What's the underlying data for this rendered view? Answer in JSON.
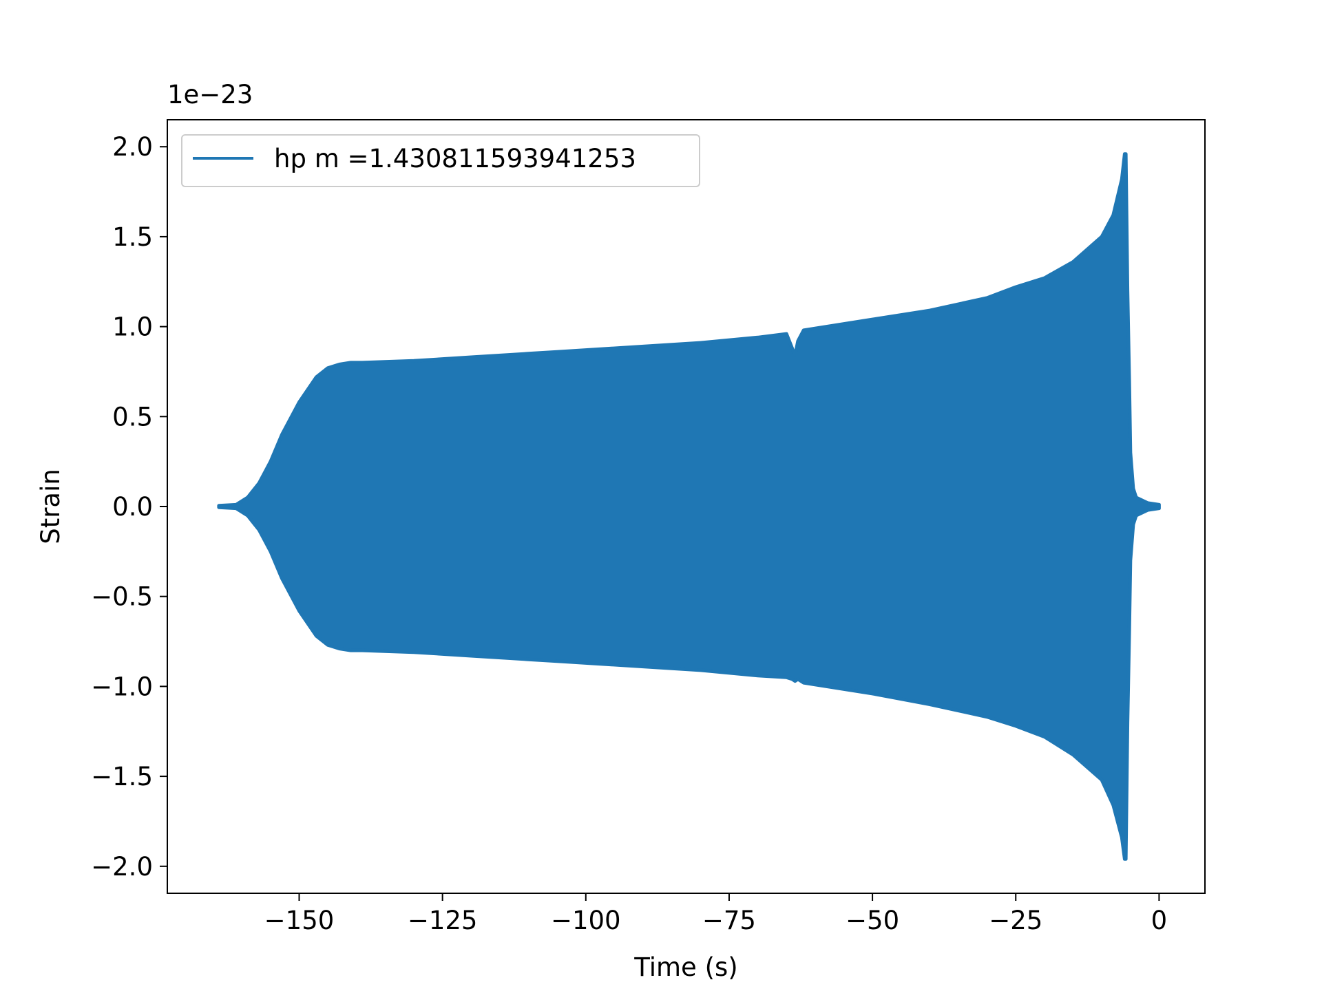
{
  "chart_data": {
    "type": "line",
    "title": "",
    "xlabel": "Time (s)",
    "ylabel": "Strain",
    "y_offset_label": "1e−23",
    "y_scale_factor": 1e-23,
    "xlim": [
      -173,
      8
    ],
    "ylim": [
      -2.15,
      2.15
    ],
    "x_ticks": [
      -150,
      -125,
      -100,
      -75,
      -50,
      -25,
      0
    ],
    "x_tick_labels": [
      "−150",
      "−125",
      "−100",
      "−75",
      "−50",
      "−25",
      "0"
    ],
    "y_ticks": [
      2.0,
      1.5,
      1.0,
      0.5,
      0.0,
      -0.5,
      -1.0,
      -1.5,
      -2.0
    ],
    "y_tick_labels": [
      "2.0",
      "1.5",
      "1.0",
      "0.5",
      "0.0",
      "−0.5",
      "−1.0",
      "−1.5",
      "−2.0"
    ],
    "grid": false,
    "legend_position": "upper-left",
    "series": [
      {
        "name": "hp m =1.430811593941253",
        "color": "#1f77b4",
        "style": "rapidly oscillating waveform, rendered as filled envelope",
        "envelope_upper": {
          "x": [
            -164,
            -161,
            -159,
            -157,
            -155,
            -153,
            -150,
            -147,
            -145,
            -143,
            -141,
            -139,
            -130,
            -120,
            -110,
            -105,
            -100,
            -90,
            -80,
            -70,
            -65,
            -64,
            -63.5,
            -63,
            -62,
            -60,
            -50,
            -40,
            -30,
            -25,
            -20,
            -15,
            -10,
            -8,
            -6.5,
            -6,
            -5.8,
            -5.5,
            -5.2,
            -5,
            -4.5,
            -4,
            -2,
            0
          ],
          "values": [
            0.005,
            0.01,
            0.05,
            0.13,
            0.25,
            0.4,
            0.58,
            0.72,
            0.77,
            0.79,
            0.8,
            0.8,
            0.81,
            0.83,
            0.85,
            0.86,
            0.87,
            0.89,
            0.91,
            0.94,
            0.96,
            0.88,
            0.84,
            0.92,
            0.98,
            0.99,
            1.04,
            1.09,
            1.16,
            1.22,
            1.27,
            1.36,
            1.5,
            1.62,
            1.82,
            1.96,
            1.96,
            1.2,
            0.7,
            0.3,
            0.1,
            0.05,
            0.02,
            0.01
          ]
        },
        "envelope_lower": {
          "x": [
            -164,
            -161,
            -159,
            -157,
            -155,
            -153,
            -150,
            -147,
            -145,
            -143,
            -141,
            -139,
            -130,
            -120,
            -110,
            -105,
            -100,
            -90,
            -80,
            -70,
            -65,
            -64,
            -63.5,
            -63,
            -62,
            -60,
            -50,
            -40,
            -30,
            -25,
            -20,
            -15,
            -10,
            -8,
            -6.5,
            -6,
            -5.8,
            -5.5,
            -5.2,
            -5,
            -4.5,
            -4,
            -2,
            0
          ],
          "values": [
            -0.005,
            -0.01,
            -0.05,
            -0.13,
            -0.25,
            -0.4,
            -0.58,
            -0.72,
            -0.77,
            -0.79,
            -0.8,
            -0.8,
            -0.81,
            -0.83,
            -0.85,
            -0.86,
            -0.87,
            -0.89,
            -0.91,
            -0.94,
            -0.95,
            -0.96,
            -0.97,
            -0.96,
            -0.98,
            -0.99,
            -1.04,
            -1.1,
            -1.17,
            -1.22,
            -1.28,
            -1.38,
            -1.52,
            -1.66,
            -1.84,
            -1.96,
            -1.96,
            -1.2,
            -0.7,
            -0.3,
            -0.1,
            -0.05,
            -0.02,
            -0.01
          ]
        }
      }
    ]
  }
}
